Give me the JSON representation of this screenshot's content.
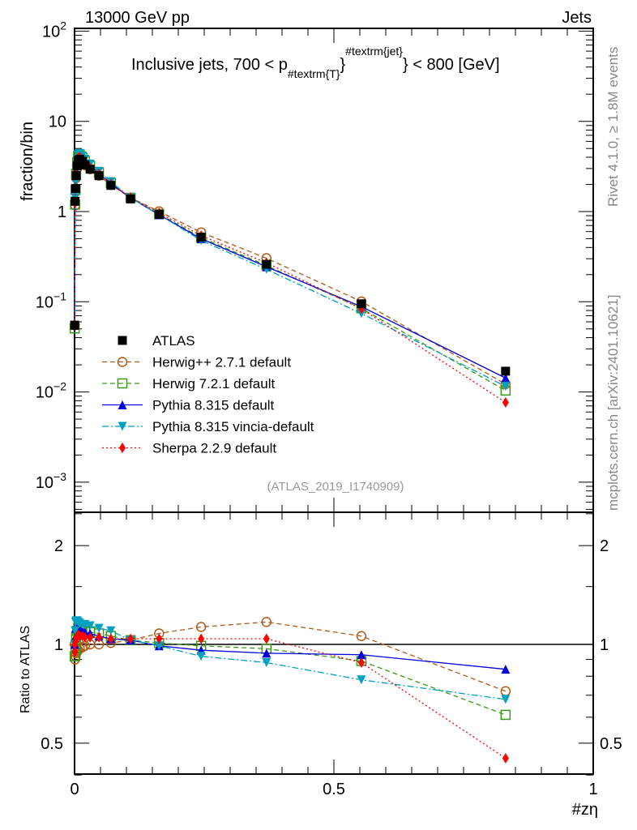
{
  "chart_data": {
    "type": "line",
    "header_left": "13000 GeV pp",
    "header_right": "Jets",
    "title_main": "Inclusive jets, 700 < p",
    "title_sub": "#textrm{T}",
    "title_sup": "#textrm{jet}",
    "title_tail": "} < 800 [GeV]",
    "title_brace": "}",
    "ylabel": "fraction/bin",
    "ratio_ylabel": "Ratio to ATLAS",
    "xlabel": "#zη",
    "side_text_top": "Rivet 4.1.0, ≥ 1.8M events",
    "side_text_bottom": "mcplots.cern.ch [arXiv:2401.10621]",
    "analysis_id": "(ATLAS_2019_I1740909)",
    "xlim": [
      0,
      1
    ],
    "ylim": [
      0.0005,
      100
    ],
    "yscale": "log",
    "ratio_ylim": [
      0.4,
      2.5
    ],
    "ratio_yscale": "log",
    "x_ticks": [
      "0",
      "0.5",
      "1"
    ],
    "y_ticks": [
      {
        "v": 100,
        "base": "10",
        "exp": "2"
      },
      {
        "v": 10,
        "base": "10",
        "exp": ""
      },
      {
        "v": 1,
        "base": "1",
        "exp": ""
      },
      {
        "v": 0.1,
        "base": "10",
        "exp": "−1"
      },
      {
        "v": 0.01,
        "base": "10",
        "exp": "−2"
      },
      {
        "v": 0.001,
        "base": "10",
        "exp": "−3"
      }
    ],
    "ratio_ticks": [
      {
        "v": 0.5,
        "label": "0.5"
      },
      {
        "v": 1,
        "label": "1"
      },
      {
        "v": 2,
        "label": "2"
      }
    ],
    "legend_position": "lower-left",
    "x": [
      0.0002,
      0.001,
      0.002,
      0.003,
      0.005,
      0.007,
      0.01,
      0.015,
      0.02,
      0.03,
      0.047,
      0.07,
      0.108,
      0.163,
      0.244,
      0.37,
      0.553,
      0.831
    ],
    "reference": {
      "name": "ATLAS",
      "color": "#000000",
      "marker": "square",
      "values": [
        0.055,
        1.3,
        1.8,
        2.5,
        3.2,
        3.7,
        3.8,
        3.6,
        3.3,
        2.95,
        2.5,
        1.95,
        1.38,
        0.93,
        0.52,
        0.26,
        0.095,
        0.017
      ]
    },
    "series": [
      {
        "name": "Herwig++ 2.7.1 default",
        "color": "#b05a1a",
        "marker": "open-circle",
        "dash": "6,4",
        "ratio": [
          1.0,
          0.9,
          0.92,
          0.94,
          0.95,
          0.96,
          0.97,
          0.98,
          0.99,
          1.0,
          1.0,
          1.01,
          1.03,
          1.08,
          1.13,
          1.17,
          1.06,
          0.72
        ]
      },
      {
        "name": "Herwig 7.2.1 default",
        "color": "#3a9a1a",
        "marker": "open-square",
        "dash": "6,4",
        "ratio": [
          0.92,
          0.92,
          0.97,
          1.05,
          1.1,
          1.12,
          1.12,
          1.1,
          1.1,
          1.09,
          1.08,
          1.06,
          1.03,
          1.01,
          0.99,
          0.97,
          0.89,
          0.61
        ]
      },
      {
        "name": "Pythia 8.315 default",
        "color": "#0000e0",
        "marker": "triangle-up",
        "dash": "",
        "ratio": [
          1.0,
          1.05,
          1.12,
          1.13,
          1.13,
          1.12,
          1.11,
          1.1,
          1.09,
          1.08,
          1.06,
          1.04,
          1.03,
          0.99,
          0.96,
          0.94,
          0.93,
          0.84
        ]
      },
      {
        "name": "Pythia 8.315 vincia-default",
        "color": "#00a0c0",
        "marker": "triangle-down",
        "dash": "8,3,2,3",
        "ratio": [
          1.0,
          1.1,
          1.17,
          1.18,
          1.18,
          1.17,
          1.16,
          1.15,
          1.15,
          1.14,
          1.12,
          1.1,
          1.03,
          0.99,
          0.92,
          0.88,
          0.78,
          0.68
        ]
      },
      {
        "name": "Sherpa 2.2.9 default",
        "color": "#ff0000",
        "marker": "diamond",
        "dash": "2,3",
        "ratio": [
          1.0,
          0.95,
          1.02,
          1.05,
          1.06,
          1.07,
          1.06,
          1.06,
          1.05,
          1.05,
          1.05,
          1.04,
          1.04,
          1.04,
          1.04,
          1.04,
          0.88,
          0.45
        ]
      }
    ]
  }
}
